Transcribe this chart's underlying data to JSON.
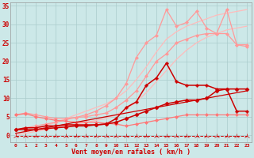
{
  "xlabel": "Vent moyen/en rafales ( km/h )",
  "background_color": "#cce8e8",
  "grid_color": "#aacccc",
  "x": [
    0,
    1,
    2,
    3,
    4,
    5,
    6,
    7,
    8,
    9,
    10,
    11,
    12,
    13,
    14,
    15,
    16,
    17,
    18,
    19,
    20,
    21,
    22,
    23
  ],
  "series": [
    {
      "y": [
        0.0,
        0.5,
        1.0,
        1.5,
        2.0,
        2.5,
        3.0,
        3.5,
        4.0,
        4.5,
        5.5,
        7.0,
        9.0,
        11.5,
        14.5,
        17.5,
        20.5,
        23.0,
        25.0,
        26.5,
        27.5,
        28.5,
        29.0,
        29.5
      ],
      "color": "#ffbbbb",
      "linewidth": 0.9,
      "marker": "",
      "markersize": 0,
      "linestyle": "-"
    },
    {
      "y": [
        0.5,
        1.0,
        1.5,
        2.5,
        3.5,
        4.5,
        5.5,
        6.5,
        7.5,
        8.5,
        10.0,
        12.0,
        15.0,
        18.5,
        22.5,
        26.0,
        28.0,
        29.5,
        30.5,
        31.5,
        32.5,
        33.0,
        33.5,
        34.0
      ],
      "color": "#ffbbbb",
      "linewidth": 0.9,
      "marker": "",
      "markersize": 0,
      "linestyle": "-"
    },
    {
      "y": [
        1.5,
        2.0,
        2.5,
        3.0,
        3.5,
        4.2,
        4.8,
        5.5,
        6.5,
        8.0,
        10.0,
        14.0,
        21.0,
        25.0,
        27.0,
        34.0,
        29.5,
        30.5,
        33.5,
        29.0,
        27.5,
        34.0,
        24.5,
        24.0
      ],
      "color": "#ff9999",
      "linewidth": 0.9,
      "marker": "D",
      "markersize": 2,
      "linestyle": "-"
    },
    {
      "y": [
        5.5,
        6.0,
        5.5,
        5.0,
        4.5,
        4.5,
        4.8,
        5.0,
        5.5,
        6.0,
        7.5,
        9.5,
        12.0,
        16.0,
        20.0,
        22.0,
        25.0,
        26.0,
        27.0,
        27.5,
        27.5,
        27.5,
        24.5,
        24.5
      ],
      "color": "#ff9999",
      "linewidth": 0.9,
      "marker": "D",
      "markersize": 2,
      "linestyle": "-"
    },
    {
      "y": [
        5.5,
        5.8,
        5.0,
        4.5,
        4.0,
        3.8,
        3.5,
        3.5,
        3.5,
        3.2,
        3.0,
        2.5,
        3.0,
        3.5,
        4.0,
        4.5,
        5.0,
        5.5,
        5.5,
        5.5,
        5.5,
        5.5,
        5.5,
        5.5
      ],
      "color": "#ff7777",
      "linewidth": 0.9,
      "marker": "D",
      "markersize": 2,
      "linestyle": "-"
    },
    {
      "y": [
        1.5,
        1.5,
        1.5,
        1.8,
        2.0,
        2.2,
        2.5,
        2.5,
        2.8,
        3.0,
        3.5,
        4.5,
        5.5,
        6.5,
        7.5,
        8.5,
        9.0,
        9.5,
        9.5,
        10.0,
        12.0,
        12.5,
        12.5,
        12.5
      ],
      "color": "#cc0000",
      "linewidth": 1.1,
      "marker": "D",
      "markersize": 2.5,
      "linestyle": "-"
    },
    {
      "y": [
        1.5,
        2.0,
        2.0,
        2.5,
        2.5,
        2.8,
        2.8,
        2.8,
        2.8,
        3.0,
        4.5,
        7.5,
        9.0,
        13.5,
        15.5,
        19.5,
        14.5,
        13.5,
        13.5,
        13.5,
        12.5,
        12.5,
        6.5,
        6.5
      ],
      "color": "#cc0000",
      "linewidth": 1.1,
      "marker": "P",
      "markersize": 2.5,
      "linestyle": "-"
    },
    {
      "y": [
        0.5,
        1.0,
        1.5,
        2.0,
        2.5,
        3.0,
        3.5,
        4.0,
        4.5,
        5.0,
        5.5,
        6.0,
        6.5,
        7.0,
        7.5,
        8.0,
        8.5,
        9.0,
        9.5,
        10.0,
        10.5,
        11.0,
        11.5,
        12.0
      ],
      "color": "#cc0000",
      "linewidth": 0.9,
      "marker": "",
      "markersize": 0,
      "linestyle": "-"
    },
    {
      "y": [
        -0.3,
        -0.3,
        -0.3,
        -0.3,
        -0.3,
        -0.3,
        -0.3,
        -0.3,
        -0.3,
        -0.3,
        -0.3,
        -0.3,
        -0.3,
        -0.3,
        -0.3,
        -0.3,
        -0.3,
        -0.3,
        -0.3,
        -0.3,
        -0.3,
        -0.3,
        -0.3,
        -0.3
      ],
      "color": "#cc0000",
      "linewidth": 0.7,
      "marker": "2",
      "markersize": 5,
      "linestyle": "--"
    }
  ]
}
